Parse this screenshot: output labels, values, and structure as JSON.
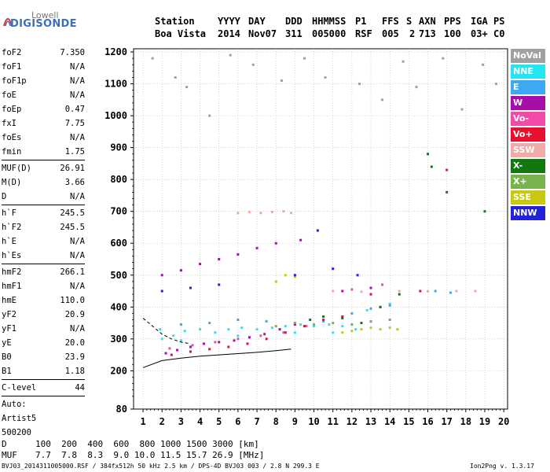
{
  "logo": {
    "top": "Lowell",
    "main": "DIGISONDE"
  },
  "header": {
    "labels": [
      "Station",
      "YYYY",
      "DAY",
      "DDD",
      "HHMMSS",
      "P1",
      "FFS",
      "S",
      "AXN",
      "PPS",
      "IGA",
      "PS"
    ],
    "values": [
      "Boa Vista",
      "2014",
      "Nov07",
      "311",
      "005000",
      "RSF",
      "005",
      "2",
      "713",
      "100",
      "03+",
      "C0"
    ]
  },
  "params_groups": [
    [
      [
        "foF2",
        "7.350"
      ],
      [
        "foF1",
        "N/A"
      ],
      [
        "foF1p",
        "N/A"
      ],
      [
        "foE",
        "N/A"
      ],
      [
        "foEp",
        "0.47"
      ],
      [
        "fxI",
        "7.75"
      ],
      [
        "foEs",
        "N/A"
      ],
      [
        "fmin",
        "1.75"
      ]
    ],
    [
      [
        "MUF(D)",
        "26.91"
      ],
      [
        "M(D)",
        "3.66"
      ],
      [
        "D",
        "N/A"
      ]
    ],
    [
      [
        "h`F",
        "245.5"
      ],
      [
        "h`F2",
        "245.5"
      ],
      [
        "h`E",
        "N/A"
      ],
      [
        "h`Es",
        "N/A"
      ]
    ],
    [
      [
        "hmF2",
        "266.1"
      ],
      [
        "hmF1",
        "N/A"
      ],
      [
        "hmE",
        "110.0"
      ],
      [
        "yF2",
        "20.9"
      ],
      [
        "yF1",
        "N/A"
      ],
      [
        "yE",
        "20.0"
      ],
      [
        "B0",
        "23.9"
      ],
      [
        "B1",
        "1.18"
      ]
    ],
    [
      [
        "C-level",
        "44"
      ]
    ]
  ],
  "autoscaling": {
    "line1": "Auto:",
    "line2": "Artist5",
    "line3": "500200"
  },
  "legend": [
    {
      "label": "NoVal",
      "color": "#a0a0a0"
    },
    {
      "label": "NNE",
      "color": "#22e6f2"
    },
    {
      "label": "E",
      "color": "#3ea8f2"
    },
    {
      "label": "W",
      "color": "#a50ea8"
    },
    {
      "label": "Vo-",
      "color": "#f24aa8"
    },
    {
      "label": "Vo+",
      "color": "#e8102e"
    },
    {
      "label": "SSW",
      "color": "#f2aaa8"
    },
    {
      "label": "X-",
      "color": "#10780e"
    },
    {
      "label": "X+",
      "color": "#78b44e"
    },
    {
      "label": "SSE",
      "color": "#c8c810"
    },
    {
      "label": "NNW",
      "color": "#2222d8"
    }
  ],
  "chart_data": {
    "type": "scatter",
    "xlim": [
      0.5,
      20.2
    ],
    "ylim": [
      80,
      1210
    ],
    "x_ticks": [
      1,
      2,
      3,
      4,
      5,
      6,
      7,
      8,
      9,
      10,
      11,
      12,
      13,
      14,
      15,
      16,
      17,
      18,
      19,
      20
    ],
    "y_ticks": [
      80,
      200,
      300,
      400,
      500,
      600,
      700,
      800,
      900,
      1000,
      1100,
      1200
    ],
    "grid": "dotted",
    "series": [
      {
        "color": "#22e6f2",
        "points": [
          [
            2.0,
            300
          ],
          [
            2.6,
            310
          ],
          [
            3.2,
            325
          ],
          [
            4.0,
            330
          ],
          [
            4.8,
            320
          ],
          [
            5.5,
            330
          ],
          [
            6.2,
            335
          ],
          [
            7.0,
            330
          ],
          [
            7.8,
            335
          ],
          [
            8.5,
            340
          ],
          [
            9.3,
            345
          ],
          [
            10.0,
            340
          ],
          [
            10.8,
            345
          ],
          [
            11.5,
            340
          ],
          [
            12.2,
            330
          ],
          [
            12.8,
            390
          ],
          [
            13.5,
            400
          ],
          [
            14.0,
            410
          ],
          [
            1.9,
            330
          ],
          [
            3.0,
            295
          ],
          [
            6.0,
            310
          ],
          [
            9.0,
            320
          ],
          [
            11.0,
            320
          ]
        ]
      },
      {
        "color": "#3ea8f2",
        "points": [
          [
            3.0,
            345
          ],
          [
            4.5,
            350
          ],
          [
            6.0,
            360
          ],
          [
            7.5,
            355
          ],
          [
            9.0,
            350
          ],
          [
            10.5,
            355
          ],
          [
            12.0,
            380
          ],
          [
            13.0,
            395
          ],
          [
            14.0,
            405
          ],
          [
            16.4,
            450
          ],
          [
            17.2,
            445
          ]
        ]
      },
      {
        "color": "#a50ea8",
        "points": [
          [
            2.2,
            255
          ],
          [
            2.8,
            265
          ],
          [
            3.5,
            275
          ],
          [
            4.2,
            285
          ],
          [
            5.0,
            290
          ],
          [
            5.8,
            295
          ],
          [
            6.6,
            305
          ],
          [
            7.4,
            315
          ],
          [
            8.2,
            330
          ],
          [
            9.0,
            345
          ],
          [
            2.0,
            500
          ],
          [
            3.0,
            515
          ],
          [
            4.0,
            535
          ],
          [
            5.0,
            550
          ],
          [
            6.0,
            565
          ],
          [
            7.0,
            585
          ],
          [
            8.0,
            600
          ],
          [
            9.3,
            610
          ],
          [
            11.5,
            450
          ],
          [
            13.0,
            460
          ]
        ]
      },
      {
        "color": "#f24aa8",
        "points": [
          [
            2.4,
            270
          ],
          [
            3.6,
            280
          ],
          [
            4.8,
            290
          ],
          [
            6.0,
            300
          ],
          [
            7.2,
            310
          ],
          [
            8.4,
            320
          ],
          [
            9.6,
            340
          ],
          [
            12.0,
            455
          ],
          [
            13.6,
            470
          ]
        ]
      },
      {
        "color": "#e8102e",
        "points": [
          [
            2.5,
            250
          ],
          [
            3.5,
            260
          ],
          [
            4.5,
            268
          ],
          [
            5.5,
            275
          ],
          [
            6.5,
            285
          ],
          [
            7.5,
            300
          ],
          [
            8.5,
            320
          ],
          [
            9.5,
            340
          ],
          [
            10.5,
            360
          ],
          [
            11.5,
            370
          ],
          [
            13.0,
            440
          ],
          [
            15.6,
            450
          ],
          [
            17.0,
            830
          ]
        ]
      },
      {
        "color": "#f2aaa8",
        "points": [
          [
            6.0,
            695
          ],
          [
            6.6,
            698
          ],
          [
            7.2,
            695
          ],
          [
            7.8,
            698
          ],
          [
            8.4,
            700
          ],
          [
            8.8,
            695
          ],
          [
            11.0,
            450
          ],
          [
            12.5,
            448
          ],
          [
            14.5,
            450
          ],
          [
            16.0,
            449
          ],
          [
            17.5,
            450
          ],
          [
            18.5,
            450
          ]
        ]
      },
      {
        "color": "#10780e",
        "points": [
          [
            9.8,
            360
          ],
          [
            10.5,
            370
          ],
          [
            11.5,
            365
          ],
          [
            12.5,
            350
          ],
          [
            13.5,
            400
          ],
          [
            14.5,
            440
          ],
          [
            16.0,
            880
          ],
          [
            16.2,
            840
          ],
          [
            17.0,
            760
          ],
          [
            19.0,
            700
          ]
        ]
      },
      {
        "color": "#78b44e",
        "points": [
          [
            8.0,
            340
          ],
          [
            9.0,
            350
          ],
          [
            10.0,
            345
          ],
          [
            11.0,
            350
          ],
          [
            12.0,
            345
          ],
          [
            13.0,
            355
          ],
          [
            14.0,
            360
          ]
        ]
      },
      {
        "color": "#c8c810",
        "points": [
          [
            8.0,
            480
          ],
          [
            8.5,
            500
          ],
          [
            9.0,
            495
          ],
          [
            11.5,
            320
          ],
          [
            12.0,
            325
          ],
          [
            12.5,
            330
          ],
          [
            13.0,
            335
          ],
          [
            13.5,
            330
          ],
          [
            14.0,
            335
          ],
          [
            14.4,
            330
          ]
        ]
      },
      {
        "color": "#2222d8",
        "points": [
          [
            2.0,
            450
          ],
          [
            3.5,
            460
          ],
          [
            5.0,
            470
          ],
          [
            9.0,
            500
          ],
          [
            10.2,
            640
          ],
          [
            11.0,
            520
          ],
          [
            12.3,
            500
          ]
        ]
      },
      {
        "color": "#a0a0a0",
        "points": [
          [
            1.5,
            1180
          ],
          [
            2.7,
            1120
          ],
          [
            3.3,
            1090
          ],
          [
            4.5,
            1000
          ],
          [
            5.6,
            1190
          ],
          [
            6.8,
            1160
          ],
          [
            8.3,
            1110
          ],
          [
            9.5,
            1180
          ],
          [
            10.6,
            1120
          ],
          [
            12.4,
            1100
          ],
          [
            13.6,
            1050
          ],
          [
            14.7,
            1170
          ],
          [
            15.4,
            1090
          ],
          [
            16.8,
            1180
          ],
          [
            17.8,
            1020
          ],
          [
            18.9,
            1160
          ],
          [
            19.6,
            1100
          ]
        ]
      }
    ],
    "curves": [
      {
        "style": "solid",
        "points": [
          [
            1,
            210
          ],
          [
            2,
            232
          ],
          [
            3,
            240
          ],
          [
            4,
            246
          ],
          [
            5,
            250
          ],
          [
            6,
            254
          ],
          [
            7,
            258
          ],
          [
            8,
            263
          ],
          [
            8.8,
            268
          ]
        ]
      },
      {
        "style": "dashed",
        "points": [
          [
            1,
            365
          ],
          [
            1.6,
            335
          ],
          [
            2,
            315
          ],
          [
            2.5,
            300
          ],
          [
            3,
            290
          ],
          [
            3.5,
            285
          ]
        ]
      }
    ]
  },
  "bottom_table": {
    "row1_label": "D",
    "row1_values": "100  200  400  600  800 1000 1500 3000 [km]",
    "row2_label": "MUF",
    "row2_values": "7.7  7.8  8.3  9.0 10.0 11.5 15.7 26.9 [MHz]"
  },
  "footer": {
    "left": "BVJ03_2014311005000.RSF / 384fx512h 50 kHz 2.5 km / DPS-4D BVJ03 003 / 2.8 N 299.3 E",
    "right": "Ion2Png v. 1.3.17"
  }
}
